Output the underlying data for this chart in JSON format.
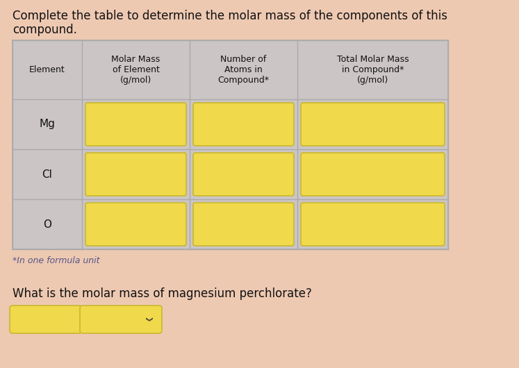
{
  "background_color": "#eec9b2",
  "title_text1": "Complete the table to determine the molar mass of the components of this",
  "title_text2": "compound.",
  "title_fontsize": 12,
  "title_color": "#111111",
  "table_bg_color": "#ccc5c5",
  "cell_fill_color": "#f0d94a",
  "cell_border_color": "#c8b830",
  "col_headers": [
    "Element",
    "Molar Mass\nof Element\n(g/mol)",
    "Number of\nAtoms in\nCompound*",
    "Total Molar Mass\nin Compound*\n(g/mol)"
  ],
  "row_labels": [
    "Mg",
    "Cl",
    "O"
  ],
  "footnote": "*In one formula unit",
  "footnote_color": "#555588",
  "question": "What is the molar mass of magnesium perchlorate?",
  "question_color": "#111111",
  "footnote_fontsize": 9,
  "question_fontsize": 12,
  "header_fontsize": 9,
  "label_fontsize": 11
}
